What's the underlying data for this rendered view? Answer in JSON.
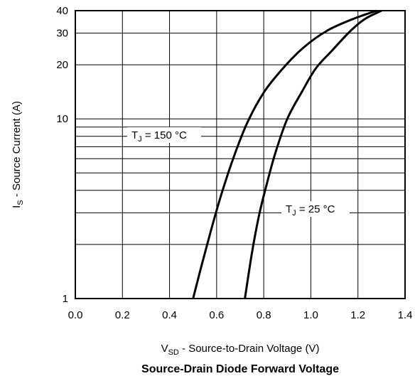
{
  "chart_data": {
    "type": "line",
    "title": "Source-Drain Diode Forward Voltage",
    "xlabel": {
      "main": "V",
      "sub": "SD",
      "rest": " - Source-to-Drain Voltage (V)"
    },
    "ylabel": {
      "main": "I",
      "sub": "S",
      "rest": " - Source Current (A)"
    },
    "xlim": [
      0.0,
      1.4
    ],
    "ylim": [
      1,
      40
    ],
    "yscale": "log",
    "grid": true,
    "x_ticks": [
      "0.0",
      "0.2",
      "0.4",
      "0.6",
      "0.8",
      "1.0",
      "1.2",
      "1.4"
    ],
    "y_ticks": [
      "1",
      "10",
      "20",
      "30",
      "40"
    ],
    "series": [
      {
        "label_main": "T",
        "label_sub": "J",
        "label_rest": " = 150 °C",
        "points": [
          [
            0.5,
            1.0
          ],
          [
            0.54,
            1.6
          ],
          [
            0.58,
            2.5
          ],
          [
            0.62,
            3.8
          ],
          [
            0.67,
            6.0
          ],
          [
            0.73,
            9.5
          ],
          [
            0.8,
            14
          ],
          [
            0.88,
            19
          ],
          [
            0.97,
            25
          ],
          [
            1.07,
            31
          ],
          [
            1.18,
            36
          ],
          [
            1.28,
            40
          ]
        ]
      },
      {
        "label_main": "T",
        "label_sub": "J",
        "label_rest": " = 25 °C",
        "points": [
          [
            0.72,
            1.0
          ],
          [
            0.75,
            1.8
          ],
          [
            0.78,
            2.9
          ],
          [
            0.81,
            4.2
          ],
          [
            0.85,
            6.5
          ],
          [
            0.9,
            10
          ],
          [
            0.96,
            14
          ],
          [
            1.02,
            19
          ],
          [
            1.09,
            24
          ],
          [
            1.17,
            31
          ],
          [
            1.23,
            36
          ],
          [
            1.3,
            40
          ]
        ]
      }
    ]
  }
}
